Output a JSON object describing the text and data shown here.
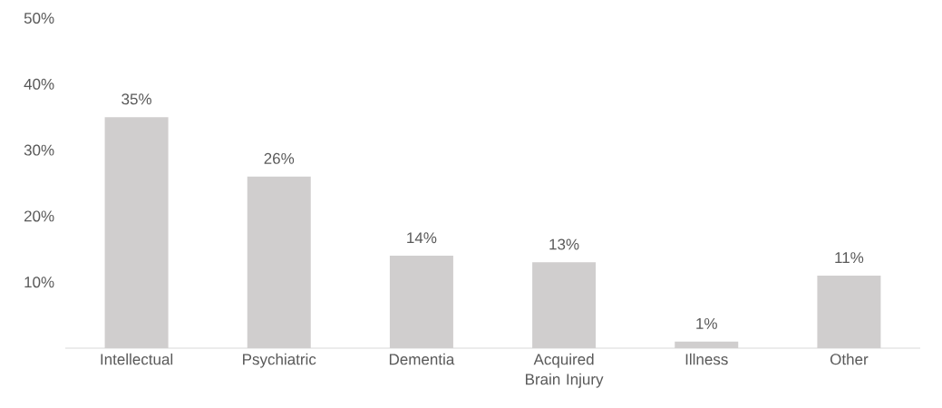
{
  "chart_data": {
    "type": "bar",
    "categories": [
      "Intellectual",
      "Psychiatric",
      "Dementia",
      "Acquired Brain Injury",
      "Illness",
      "Other"
    ],
    "values": [
      35,
      26,
      14,
      13,
      1,
      11
    ],
    "value_labels": [
      "35%",
      "26%",
      "14%",
      "13%",
      "1%",
      "11%"
    ],
    "color": "#d0cece",
    "ylim": [
      0,
      50
    ],
    "yticks": [
      {
        "value": 10,
        "label": "10%"
      },
      {
        "value": 20,
        "label": "20%"
      },
      {
        "value": 30,
        "label": "30%"
      },
      {
        "value": 40,
        "label": "40%"
      },
      {
        "value": 50,
        "label": "50%"
      }
    ],
    "grid": false
  }
}
